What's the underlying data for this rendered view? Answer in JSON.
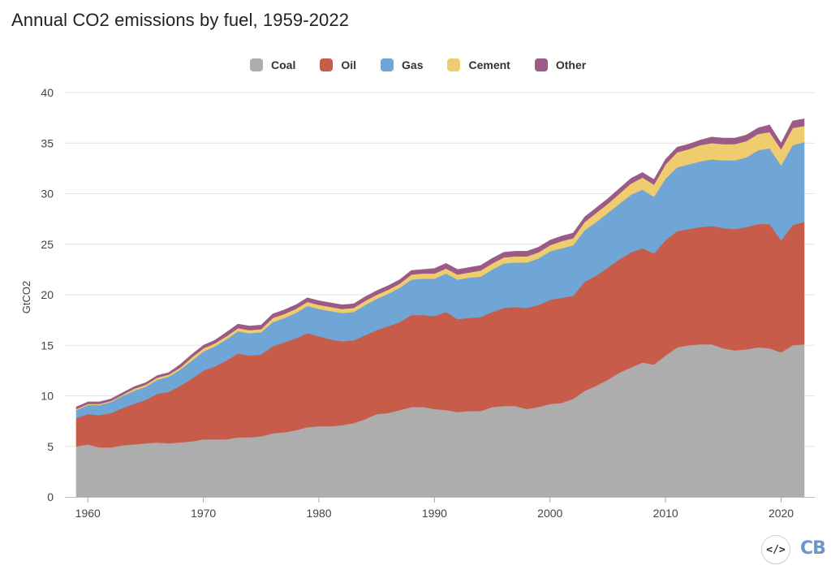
{
  "page": {
    "title": "Annual CO2 emissions by fuel, 1959-2022",
    "embed_icon": "embed-code-icon",
    "embed_glyph": "</>",
    "logo_text": "CB"
  },
  "chart_data": {
    "type": "area",
    "stacked": true,
    "title": "Annual CO2 emissions by fuel, 1959-2022",
    "xlabel": "",
    "ylabel": "GtCO2",
    "xlim": [
      1959,
      2022
    ],
    "ylim": [
      0,
      40
    ],
    "x_ticks": [
      1960,
      1970,
      1980,
      1990,
      2000,
      2010,
      2020
    ],
    "y_ticks": [
      0,
      5,
      10,
      15,
      20,
      25,
      30,
      35,
      40
    ],
    "grid": "horizontal",
    "legend_position": "top",
    "x": [
      1959,
      1960,
      1961,
      1962,
      1963,
      1964,
      1965,
      1966,
      1967,
      1968,
      1969,
      1970,
      1971,
      1972,
      1973,
      1974,
      1975,
      1976,
      1977,
      1978,
      1979,
      1980,
      1981,
      1982,
      1983,
      1984,
      1985,
      1986,
      1987,
      1988,
      1989,
      1990,
      1991,
      1992,
      1993,
      1994,
      1995,
      1996,
      1997,
      1998,
      1999,
      2000,
      2001,
      2002,
      2003,
      2004,
      2005,
      2006,
      2007,
      2008,
      2009,
      2010,
      2011,
      2012,
      2013,
      2014,
      2015,
      2016,
      2017,
      2018,
      2019,
      2020,
      2021,
      2022
    ],
    "series": [
      {
        "name": "Coal",
        "color": "#adadad",
        "values": [
          5.0,
          5.2,
          4.9,
          4.9,
          5.1,
          5.2,
          5.3,
          5.4,
          5.3,
          5.4,
          5.5,
          5.7,
          5.7,
          5.7,
          5.9,
          5.9,
          6.0,
          6.3,
          6.4,
          6.6,
          6.9,
          7.0,
          7.0,
          7.1,
          7.3,
          7.7,
          8.2,
          8.3,
          8.6,
          8.9,
          8.9,
          8.7,
          8.6,
          8.4,
          8.5,
          8.5,
          8.9,
          9.0,
          9.0,
          8.7,
          8.9,
          9.2,
          9.3,
          9.7,
          10.5,
          11.0,
          11.6,
          12.3,
          12.8,
          13.3,
          13.1,
          14.0,
          14.8,
          15.0,
          15.1,
          15.1,
          14.7,
          14.5,
          14.6,
          14.8,
          14.7,
          14.3,
          15.0,
          15.1
        ]
      },
      {
        "name": "Oil",
        "color": "#c85c4a",
        "values": [
          2.8,
          3.0,
          3.2,
          3.4,
          3.7,
          4.0,
          4.3,
          4.8,
          5.1,
          5.6,
          6.2,
          6.8,
          7.2,
          7.8,
          8.3,
          8.1,
          8.1,
          8.6,
          8.9,
          9.1,
          9.3,
          8.9,
          8.6,
          8.3,
          8.2,
          8.3,
          8.3,
          8.6,
          8.7,
          9.1,
          9.1,
          9.2,
          9.7,
          9.2,
          9.2,
          9.3,
          9.4,
          9.7,
          9.8,
          10.0,
          10.1,
          10.3,
          10.4,
          10.2,
          10.8,
          10.9,
          11.1,
          11.2,
          11.4,
          11.3,
          11.0,
          11.4,
          11.5,
          11.5,
          11.6,
          11.7,
          11.9,
          12.0,
          12.1,
          12.2,
          12.3,
          11.1,
          11.9,
          12.1
        ]
      },
      {
        "name": "Gas",
        "color": "#6fa6d6",
        "values": [
          0.8,
          0.9,
          1.0,
          1.1,
          1.2,
          1.3,
          1.3,
          1.4,
          1.5,
          1.6,
          1.8,
          1.9,
          2.0,
          2.1,
          2.2,
          2.2,
          2.2,
          2.4,
          2.4,
          2.5,
          2.7,
          2.7,
          2.8,
          2.8,
          2.8,
          3.0,
          3.1,
          3.2,
          3.4,
          3.5,
          3.6,
          3.7,
          3.8,
          3.9,
          4.0,
          4.0,
          4.2,
          4.4,
          4.4,
          4.5,
          4.6,
          4.8,
          4.9,
          5.0,
          5.1,
          5.3,
          5.4,
          5.5,
          5.7,
          5.8,
          5.6,
          6.1,
          6.3,
          6.4,
          6.5,
          6.6,
          6.7,
          6.8,
          6.9,
          7.3,
          7.5,
          7.4,
          7.9,
          7.9
        ]
      },
      {
        "name": "Cement",
        "color": "#efcd6e",
        "values": [
          0.1,
          0.1,
          0.1,
          0.1,
          0.1,
          0.2,
          0.2,
          0.2,
          0.2,
          0.2,
          0.3,
          0.3,
          0.3,
          0.3,
          0.3,
          0.3,
          0.3,
          0.4,
          0.4,
          0.4,
          0.4,
          0.4,
          0.4,
          0.4,
          0.4,
          0.4,
          0.4,
          0.4,
          0.4,
          0.5,
          0.5,
          0.5,
          0.5,
          0.5,
          0.5,
          0.6,
          0.6,
          0.6,
          0.6,
          0.6,
          0.6,
          0.6,
          0.7,
          0.7,
          0.8,
          0.9,
          0.9,
          1.0,
          1.1,
          1.2,
          1.2,
          1.4,
          1.5,
          1.5,
          1.6,
          1.6,
          1.6,
          1.6,
          1.6,
          1.6,
          1.6,
          1.6,
          1.7,
          1.6
        ]
      },
      {
        "name": "Other",
        "color": "#9b5b86",
        "values": [
          0.2,
          0.2,
          0.2,
          0.2,
          0.2,
          0.2,
          0.2,
          0.2,
          0.2,
          0.3,
          0.3,
          0.3,
          0.3,
          0.4,
          0.4,
          0.4,
          0.4,
          0.4,
          0.4,
          0.4,
          0.4,
          0.4,
          0.4,
          0.4,
          0.4,
          0.4,
          0.4,
          0.4,
          0.4,
          0.4,
          0.4,
          0.5,
          0.5,
          0.5,
          0.5,
          0.5,
          0.5,
          0.5,
          0.5,
          0.5,
          0.5,
          0.5,
          0.5,
          0.5,
          0.5,
          0.5,
          0.5,
          0.5,
          0.5,
          0.5,
          0.5,
          0.5,
          0.5,
          0.5,
          0.5,
          0.6,
          0.6,
          0.6,
          0.6,
          0.6,
          0.7,
          0.6,
          0.7,
          0.7
        ]
      }
    ]
  }
}
